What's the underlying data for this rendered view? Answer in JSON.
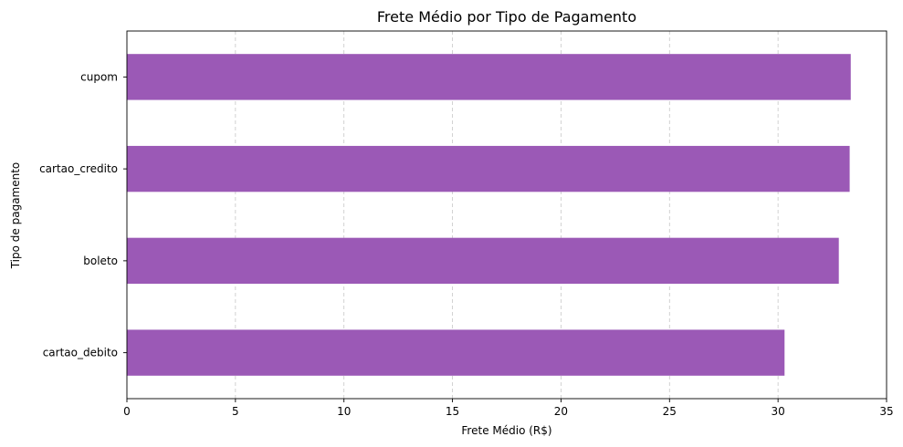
{
  "chart_data": {
    "type": "bar",
    "orientation": "horizontal",
    "title": "Frete Médio por Tipo de Pagamento",
    "xlabel": "Frete Médio (R$)",
    "ylabel": "Tipo de pagamento",
    "categories": [
      "cartao_debito",
      "boleto",
      "cartao_credito",
      "cupom"
    ],
    "values": [
      30.3,
      32.8,
      33.3,
      33.35
    ],
    "xlim": [
      0,
      35
    ],
    "xticks": [
      0,
      5,
      10,
      15,
      20,
      25,
      30,
      35
    ],
    "grid": "x, dashed",
    "bar_color": "#9b59b6"
  }
}
